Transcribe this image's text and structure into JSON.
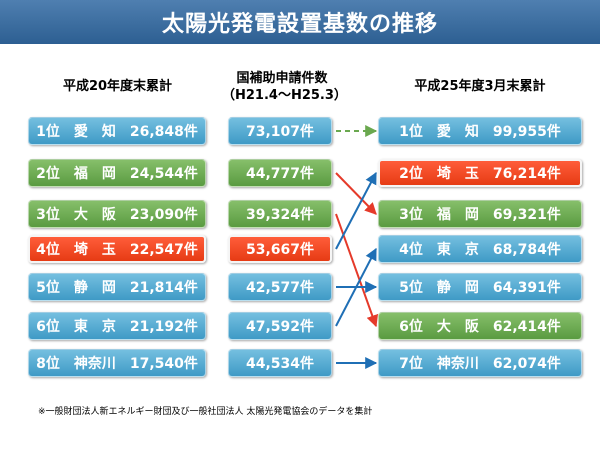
{
  "title": "太陽光発電設置基数の推移",
  "headers": {
    "left": "平成20年度末累計",
    "mid_line1": "国補助申請件数",
    "mid_line2": "（H21.4～H25.3）",
    "right": "平成25年度3月末累計"
  },
  "left_rows": [
    {
      "text": "1位　愛　知　26,848件",
      "color": "blue"
    },
    {
      "text": "2位　福　岡　24,544件",
      "color": "green"
    },
    {
      "text": "3位　大　阪　23,090件",
      "color": "green"
    },
    {
      "text": "4位　埼　玉　22,547件",
      "color": "red"
    },
    {
      "text": "5位　静　岡　21,814件",
      "color": "blue"
    },
    {
      "text": "6位　東　京　21,192件",
      "color": "blue"
    },
    {
      "text": "8位　神奈川　17,540件",
      "color": "blue"
    }
  ],
  "mid_rows": [
    {
      "text": "73,107件",
      "color": "blue"
    },
    {
      "text": "44,777件",
      "color": "green"
    },
    {
      "text": "39,324件",
      "color": "green"
    },
    {
      "text": "53,667件",
      "color": "red"
    },
    {
      "text": "42,577件",
      "color": "blue"
    },
    {
      "text": "47,592件",
      "color": "blue"
    },
    {
      "text": "44,534件",
      "color": "blue"
    }
  ],
  "right_rows": [
    {
      "text": "1位　愛　知　99,955件",
      "color": "blue"
    },
    {
      "text": "2位　埼　玉　76,214件",
      "color": "red"
    },
    {
      "text": "3位　福　岡　69,321件",
      "color": "green"
    },
    {
      "text": "4位　東　京　68,784件",
      "color": "blue"
    },
    {
      "text": "5位　静　岡　64,391件",
      "color": "blue"
    },
    {
      "text": "6位　大　阪　62,414件",
      "color": "green"
    },
    {
      "text": "7位　神奈川　62,074件",
      "color": "blue"
    }
  ],
  "connections": [
    {
      "from": 0,
      "to": 0,
      "style": "dashed",
      "color": "#6aa84f"
    },
    {
      "from": 1,
      "to": 2,
      "style": "solid",
      "color": "#e53a2a"
    },
    {
      "from": 2,
      "to": 5,
      "style": "solid",
      "color": "#e53a2a"
    },
    {
      "from": 3,
      "to": 1,
      "style": "solid",
      "color": "#1f6fb5"
    },
    {
      "from": 4,
      "to": 4,
      "style": "solid",
      "color": "#1f6fb5"
    },
    {
      "from": 5,
      "to": 3,
      "style": "solid",
      "color": "#1f6fb5"
    },
    {
      "from": 6,
      "to": 6,
      "style": "solid",
      "color": "#1f6fb5"
    }
  ],
  "footnote": "※一般財団法人新エネルギー財団及び一般社団法人 太陽光発電協会のデータを集計"
}
